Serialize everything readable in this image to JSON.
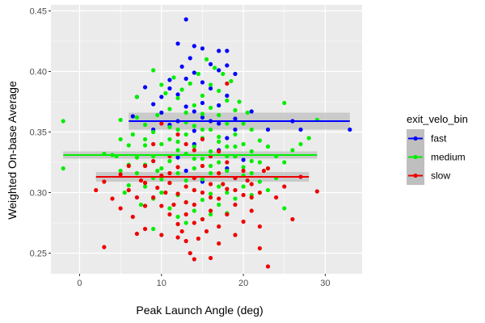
{
  "chart_data": {
    "type": "scatter",
    "title": "",
    "xlabel": "Peak Launch Angle (deg)",
    "ylabel": "Weighted On-base Average",
    "xlim": [
      -3.5,
      34.5
    ],
    "ylim": [
      0.233,
      0.455
    ],
    "x_ticks": [
      0,
      10,
      20,
      30
    ],
    "x_tick_labels": [
      "0",
      "10",
      "20",
      "30"
    ],
    "y_ticks": [
      0.25,
      0.3,
      0.35,
      0.4,
      0.45
    ],
    "y_tick_labels": [
      "0.25",
      "0.30",
      "0.35",
      "0.40",
      "0.45"
    ],
    "grid": true,
    "legend": {
      "title": "exit_velo_bin",
      "placement": "right",
      "entries": [
        "fast",
        "medium",
        "slow"
      ]
    },
    "colors": {
      "fast": "#0000ff",
      "medium": "#00ee00",
      "slow": "#ee0000",
      "panel": "#ebebeb",
      "band": "#bfbfbf"
    },
    "series": [
      {
        "name": "fast",
        "fit": {
          "x_start": 6,
          "x_end": 33,
          "y": 0.359,
          "band": [
            0.352,
            0.366
          ]
        },
        "points": [
          [
            13.0,
            0.443
          ],
          [
            12.0,
            0.423
          ],
          [
            14.0,
            0.421
          ],
          [
            15.0,
            0.419
          ],
          [
            13.5,
            0.411
          ],
          [
            16.0,
            0.406
          ],
          [
            17.0,
            0.417
          ],
          [
            18.0,
            0.417
          ],
          [
            18.0,
            0.405
          ],
          [
            12.5,
            0.404
          ],
          [
            14.0,
            0.399
          ],
          [
            17.0,
            0.401
          ],
          [
            11.0,
            0.393
          ],
          [
            13.0,
            0.394
          ],
          [
            15.0,
            0.391
          ],
          [
            19.0,
            0.398
          ],
          [
            8.0,
            0.387
          ],
          [
            11.0,
            0.386
          ],
          [
            16.0,
            0.386
          ],
          [
            7.0,
            0.379
          ],
          [
            10.0,
            0.379
          ],
          [
            12.0,
            0.381
          ],
          [
            18.0,
            0.38
          ],
          [
            9.0,
            0.373
          ],
          [
            13.0,
            0.371
          ],
          [
            15.0,
            0.374
          ],
          [
            17.0,
            0.372
          ],
          [
            6.5,
            0.363
          ],
          [
            10.0,
            0.366
          ],
          [
            14.0,
            0.367
          ],
          [
            16.0,
            0.359
          ],
          [
            19.0,
            0.361
          ],
          [
            21.0,
            0.367
          ],
          [
            23.0,
            0.352
          ],
          [
            26.0,
            0.359
          ],
          [
            27.0,
            0.352
          ],
          [
            33.0,
            0.352
          ],
          [
            11.0,
            0.356
          ],
          [
            12.0,
            0.359
          ],
          [
            15.0,
            0.362
          ],
          [
            17.0,
            0.357
          ],
          [
            19.0,
            0.352
          ],
          [
            14.0,
            0.351
          ],
          [
            9.0,
            0.352
          ],
          [
            18.0,
            0.345
          ],
          [
            14.0,
            0.34
          ],
          [
            17.0,
            0.335
          ],
          [
            16.0,
            0.33
          ],
          [
            19.0,
            0.33
          ],
          [
            12.0,
            0.329
          ],
          [
            18.0,
            0.32
          ],
          [
            20.0,
            0.327
          ],
          [
            13.0,
            0.318
          ],
          [
            15.0,
            0.309
          ]
        ]
      },
      {
        "name": "medium",
        "fit": {
          "x_start": -2,
          "x_end": 29,
          "y": 0.331,
          "band": [
            0.328,
            0.334
          ]
        },
        "points": [
          [
            -2.0,
            0.359
          ],
          [
            -2.0,
            0.32
          ],
          [
            3.0,
            0.332
          ],
          [
            4.0,
            0.331
          ],
          [
            4.5,
            0.33
          ],
          [
            5.0,
            0.36
          ],
          [
            5.0,
            0.344
          ],
          [
            5.0,
            0.318
          ],
          [
            5.5,
            0.3
          ],
          [
            6.0,
            0.339
          ],
          [
            6.0,
            0.323
          ],
          [
            6.0,
            0.306
          ],
          [
            6.5,
            0.348
          ],
          [
            7.0,
            0.362
          ],
          [
            7.0,
            0.329
          ],
          [
            7.0,
            0.316
          ],
          [
            7.5,
            0.29
          ],
          [
            8.0,
            0.356
          ],
          [
            8.0,
            0.339
          ],
          [
            8.0,
            0.323
          ],
          [
            8.0,
            0.305
          ],
          [
            9.0,
            0.35
          ],
          [
            9.0,
            0.33
          ],
          [
            9.0,
            0.312
          ],
          [
            9.0,
            0.295
          ],
          [
            9.0,
            0.27
          ],
          [
            9.5,
            0.364
          ],
          [
            10.0,
            0.389
          ],
          [
            10.0,
            0.34
          ],
          [
            10.0,
            0.32
          ],
          [
            10.0,
            0.3
          ],
          [
            10.5,
            0.382
          ],
          [
            11.0,
            0.369
          ],
          [
            11.0,
            0.344
          ],
          [
            11.0,
            0.326
          ],
          [
            11.0,
            0.308
          ],
          [
            11.0,
            0.287
          ],
          [
            11.5,
            0.395
          ],
          [
            12.0,
            0.378
          ],
          [
            12.0,
            0.352
          ],
          [
            12.0,
            0.335
          ],
          [
            12.0,
            0.316
          ],
          [
            12.0,
            0.298
          ],
          [
            12.0,
            0.28
          ],
          [
            12.5,
            0.385
          ],
          [
            13.0,
            0.366
          ],
          [
            13.0,
            0.348
          ],
          [
            13.0,
            0.332
          ],
          [
            13.0,
            0.31
          ],
          [
            13.0,
            0.292
          ],
          [
            13.0,
            0.275
          ],
          [
            13.5,
            0.39
          ],
          [
            14.0,
            0.372
          ],
          [
            14.0,
            0.355
          ],
          [
            14.0,
            0.338
          ],
          [
            14.0,
            0.32
          ],
          [
            14.0,
            0.302
          ],
          [
            14.0,
            0.285
          ],
          [
            14.5,
            0.398
          ],
          [
            15.0,
            0.38
          ],
          [
            15.0,
            0.365
          ],
          [
            15.0,
            0.345
          ],
          [
            15.0,
            0.328
          ],
          [
            15.0,
            0.311
          ],
          [
            15.0,
            0.294
          ],
          [
            15.0,
            0.278
          ],
          [
            15.5,
            0.41
          ],
          [
            16.0,
            0.389
          ],
          [
            16.0,
            0.37
          ],
          [
            16.0,
            0.352
          ],
          [
            16.0,
            0.334
          ],
          [
            16.0,
            0.316
          ],
          [
            16.0,
            0.299
          ],
          [
            16.0,
            0.282
          ],
          [
            16.5,
            0.403
          ],
          [
            17.0,
            0.384
          ],
          [
            17.0,
            0.364
          ],
          [
            17.0,
            0.342
          ],
          [
            17.0,
            0.325
          ],
          [
            17.0,
            0.305
          ],
          [
            17.0,
            0.29
          ],
          [
            17.5,
            0.398
          ],
          [
            18.0,
            0.376
          ],
          [
            18.0,
            0.357
          ],
          [
            18.0,
            0.338
          ],
          [
            18.0,
            0.318
          ],
          [
            18.0,
            0.3
          ],
          [
            18.0,
            0.283
          ],
          [
            18.5,
            0.392
          ],
          [
            19.0,
            0.368
          ],
          [
            19.0,
            0.348
          ],
          [
            19.0,
            0.33
          ],
          [
            19.0,
            0.312
          ],
          [
            19.0,
            0.295
          ],
          [
            19.5,
            0.375
          ],
          [
            20.0,
            0.357
          ],
          [
            20.0,
            0.34
          ],
          [
            20.0,
            0.321
          ],
          [
            20.0,
            0.305
          ],
          [
            20.5,
            0.366
          ],
          [
            21.0,
            0.352
          ],
          [
            21.0,
            0.334
          ],
          [
            21.0,
            0.316
          ],
          [
            21.0,
            0.298
          ],
          [
            22.0,
            0.343
          ],
          [
            22.0,
            0.325
          ],
          [
            22.0,
            0.309
          ],
          [
            23.0,
            0.338
          ],
          [
            23.0,
            0.32
          ],
          [
            23.0,
            0.302
          ],
          [
            24.0,
            0.33
          ],
          [
            24.0,
            0.312
          ],
          [
            25.0,
            0.374
          ],
          [
            25.0,
            0.325
          ],
          [
            25.0,
            0.287
          ],
          [
            26.0,
            0.335
          ],
          [
            27.0,
            0.34
          ],
          [
            28.0,
            0.345
          ],
          [
            29.0,
            0.36
          ],
          [
            9.0,
            0.401
          ],
          [
            7.0,
            0.379
          ],
          [
            10.0,
            0.311
          ],
          [
            12.0,
            0.342
          ],
          [
            14.0,
            0.328
          ],
          [
            16.0,
            0.322
          ],
          [
            18.0,
            0.33
          ],
          [
            20.0,
            0.314
          ],
          [
            8.0,
            0.344
          ],
          [
            11.0,
            0.354
          ],
          [
            13.0,
            0.358
          ],
          [
            15.0,
            0.352
          ],
          [
            17.0,
            0.346
          ],
          [
            19.0,
            0.338
          ],
          [
            21.0,
            0.326
          ],
          [
            9.5,
            0.318
          ]
        ]
      },
      {
        "name": "slow",
        "fit": {
          "x_start": 2,
          "x_end": 28,
          "y": 0.313,
          "band": [
            0.309,
            0.317
          ]
        },
        "points": [
          [
            2.0,
            0.302
          ],
          [
            3.0,
            0.255
          ],
          [
            3.0,
            0.309
          ],
          [
            4.0,
            0.295
          ],
          [
            5.0,
            0.287
          ],
          [
            5.0,
            0.315
          ],
          [
            6.0,
            0.302
          ],
          [
            6.0,
            0.322
          ],
          [
            7.0,
            0.266
          ],
          [
            7.0,
            0.296
          ],
          [
            7.5,
            0.31
          ],
          [
            8.0,
            0.27
          ],
          [
            8.0,
            0.308
          ],
          [
            8.0,
            0.322
          ],
          [
            9.0,
            0.296
          ],
          [
            9.0,
            0.326
          ],
          [
            9.0,
            0.34
          ],
          [
            10.0,
            0.265
          ],
          [
            10.0,
            0.289
          ],
          [
            10.0,
            0.314
          ],
          [
            10.5,
            0.3
          ],
          [
            11.0,
            0.282
          ],
          [
            11.0,
            0.308
          ],
          [
            11.0,
            0.33
          ],
          [
            11.5,
            0.29
          ],
          [
            12.0,
            0.263
          ],
          [
            12.0,
            0.274
          ],
          [
            12.0,
            0.299
          ],
          [
            12.0,
            0.321
          ],
          [
            12.5,
            0.268
          ],
          [
            13.0,
            0.282
          ],
          [
            13.0,
            0.305
          ],
          [
            13.0,
            0.34
          ],
          [
            13.0,
            0.26
          ],
          [
            13.5,
            0.25
          ],
          [
            14.0,
            0.245
          ],
          [
            14.0,
            0.275
          ],
          [
            14.0,
            0.29
          ],
          [
            14.0,
            0.312
          ],
          [
            14.0,
            0.335
          ],
          [
            14.5,
            0.262
          ],
          [
            15.0,
            0.278
          ],
          [
            15.0,
            0.3
          ],
          [
            15.0,
            0.322
          ],
          [
            15.5,
            0.268
          ],
          [
            16.0,
            0.285
          ],
          [
            16.0,
            0.307
          ],
          [
            16.0,
            0.33
          ],
          [
            16.0,
            0.246
          ],
          [
            17.0,
            0.272
          ],
          [
            17.0,
            0.295
          ],
          [
            17.0,
            0.316
          ],
          [
            17.0,
            0.258
          ],
          [
            18.0,
            0.282
          ],
          [
            18.0,
            0.303
          ],
          [
            18.0,
            0.325
          ],
          [
            18.0,
            0.39
          ],
          [
            19.0,
            0.265
          ],
          [
            19.0,
            0.29
          ],
          [
            19.0,
            0.312
          ],
          [
            20.0,
            0.276
          ],
          [
            20.0,
            0.298
          ],
          [
            20.0,
            0.318
          ],
          [
            21.0,
            0.285
          ],
          [
            21.0,
            0.307
          ],
          [
            22.0,
            0.272
          ],
          [
            22.0,
            0.3
          ],
          [
            22.0,
            0.254
          ],
          [
            23.0,
            0.239
          ],
          [
            23.0,
            0.32
          ],
          [
            24.0,
            0.296
          ],
          [
            25.0,
            0.305
          ],
          [
            26.0,
            0.278
          ],
          [
            27.0,
            0.313
          ],
          [
            29.0,
            0.301
          ],
          [
            10.0,
            0.357
          ],
          [
            12.0,
            0.348
          ],
          [
            15.0,
            0.344
          ],
          [
            17.0,
            0.334
          ],
          [
            8.0,
            0.289
          ],
          [
            6.5,
            0.28
          ],
          [
            11.0,
            0.316
          ],
          [
            13.0,
            0.292
          ],
          [
            16.0,
            0.296
          ],
          [
            19.0,
            0.302
          ],
          [
            21.0,
            0.296
          ],
          [
            9.5,
            0.304
          ],
          [
            14.0,
            0.302
          ],
          [
            17.5,
            0.307
          ],
          [
            20.5,
            0.31
          ],
          [
            22.5,
            0.318
          ]
        ]
      }
    ]
  }
}
